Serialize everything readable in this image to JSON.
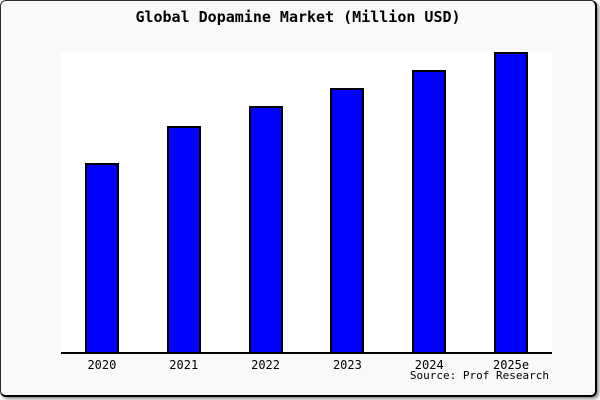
{
  "frame": {
    "title": "Global Dopamine Market (Million USD)",
    "source": "Source: Prof Research"
  },
  "chart_data": {
    "type": "bar",
    "title": "Global Dopamine Market (Million USD)",
    "categories": [
      "2020",
      "2021",
      "2022",
      "2023",
      "2024",
      "2025e"
    ],
    "values": [
      63,
      75.5,
      82,
      88,
      94,
      100
    ],
    "values_note": "No y-axis, gridlines or data labels are rendered; values are relative bar heights with the tallest bar (2025e) = 100.",
    "xlabel": "",
    "ylabel": "",
    "ylim": [
      0,
      100
    ],
    "grid": false,
    "legend_position": "none",
    "source": "Source: Prof Research",
    "colors": {
      "bar_fill": "#0000ff",
      "bar_border": "#000000",
      "axis_line": "#000000",
      "plot_background": "#ffffff",
      "canvas_background": "#f9f9f9",
      "text": "#000000"
    }
  }
}
